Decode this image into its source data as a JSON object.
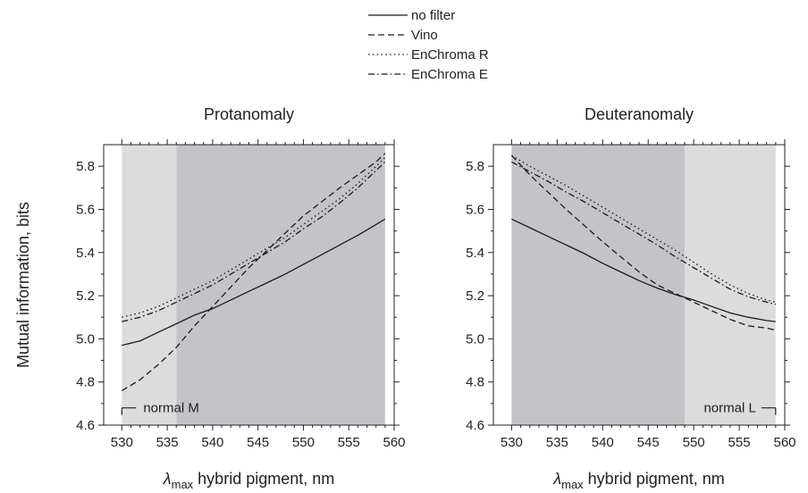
{
  "colors": {
    "line": "#1a1a1a",
    "shade_light": "#dcdcdc",
    "shade_dark": "#c4c4c8",
    "axis": "#222222",
    "text": "#222222"
  },
  "legend": {
    "entries": [
      {
        "label": "no filter",
        "dash": "solid"
      },
      {
        "label": "Vino",
        "dash": "dashed"
      },
      {
        "label": "EnChroma R",
        "dash": "dotted"
      },
      {
        "label": "EnChroma E",
        "dash": "dashdot"
      }
    ]
  },
  "axes": {
    "ylabel": "Mutual information, bits",
    "xlabel_symbol": "λ",
    "xlabel_sub": "max",
    "xlabel_rest": " hybrid pigment, nm"
  },
  "chart_data": [
    {
      "type": "line",
      "title": "Protanomaly",
      "xlim": [
        528,
        560
      ],
      "ylim": [
        4.6,
        5.9
      ],
      "xticks": [
        "530",
        "535",
        "540",
        "545",
        "550",
        "555",
        "560"
      ],
      "yticks": [
        "4.6",
        "4.8",
        "5.0",
        "5.2",
        "5.4",
        "5.6",
        "5.8"
      ],
      "shaded_regions": [
        {
          "x": [
            530,
            536
          ],
          "shade": "light"
        },
        {
          "x": [
            536,
            559
          ],
          "shade": "dark"
        }
      ],
      "annotation": {
        "text": "normal M",
        "x": 530,
        "y": 4.68
      },
      "x": [
        530,
        532,
        534,
        536,
        538,
        540,
        542,
        544,
        546,
        548,
        550,
        552,
        554,
        556,
        558,
        559
      ],
      "series": [
        {
          "name": "no filter",
          "dash": "solid",
          "values": [
            4.97,
            4.99,
            5.03,
            5.07,
            5.11,
            5.14,
            5.18,
            5.22,
            5.26,
            5.3,
            5.345,
            5.39,
            5.435,
            5.48,
            5.53,
            5.555
          ]
        },
        {
          "name": "Vino",
          "dash": "dashed",
          "values": [
            4.76,
            4.81,
            4.88,
            4.96,
            5.06,
            5.15,
            5.24,
            5.33,
            5.41,
            5.49,
            5.57,
            5.635,
            5.7,
            5.76,
            5.82,
            5.86
          ]
        },
        {
          "name": "EnChroma R",
          "dash": "dotted",
          "values": [
            5.1,
            5.12,
            5.15,
            5.19,
            5.23,
            5.27,
            5.32,
            5.37,
            5.42,
            5.47,
            5.53,
            5.59,
            5.65,
            5.72,
            5.8,
            5.84
          ]
        },
        {
          "name": "EnChroma E",
          "dash": "dashdot",
          "values": [
            5.08,
            5.1,
            5.13,
            5.17,
            5.21,
            5.25,
            5.3,
            5.35,
            5.4,
            5.45,
            5.51,
            5.565,
            5.63,
            5.7,
            5.78,
            5.82
          ]
        }
      ]
    },
    {
      "type": "line",
      "title": "Deuteranomaly",
      "xlim": [
        528,
        560
      ],
      "ylim": [
        4.6,
        5.9
      ],
      "xticks": [
        "530",
        "535",
        "540",
        "545",
        "550",
        "555",
        "560"
      ],
      "yticks": [
        "4.6",
        "4.8",
        "5.0",
        "5.2",
        "5.4",
        "5.6",
        "5.8"
      ],
      "shaded_regions": [
        {
          "x": [
            530,
            549
          ],
          "shade": "dark"
        },
        {
          "x": [
            549,
            559
          ],
          "shade": "light"
        }
      ],
      "annotation": {
        "text": "normal L",
        "x": 559,
        "y": 4.68
      },
      "x": [
        530,
        532,
        534,
        536,
        538,
        540,
        542,
        544,
        546,
        548,
        550,
        552,
        554,
        556,
        558,
        559
      ],
      "series": [
        {
          "name": "no filter",
          "dash": "solid",
          "values": [
            5.555,
            5.515,
            5.475,
            5.435,
            5.395,
            5.35,
            5.31,
            5.27,
            5.235,
            5.205,
            5.18,
            5.15,
            5.12,
            5.1,
            5.085,
            5.08
          ]
        },
        {
          "name": "Vino",
          "dash": "dashed",
          "values": [
            5.85,
            5.76,
            5.68,
            5.6,
            5.525,
            5.45,
            5.38,
            5.31,
            5.25,
            5.21,
            5.17,
            5.13,
            5.09,
            5.06,
            5.05,
            5.04
          ]
        },
        {
          "name": "EnChroma R",
          "dash": "dotted",
          "values": [
            5.85,
            5.8,
            5.755,
            5.71,
            5.66,
            5.61,
            5.56,
            5.51,
            5.46,
            5.41,
            5.355,
            5.3,
            5.25,
            5.21,
            5.18,
            5.17
          ]
        },
        {
          "name": "EnChroma E",
          "dash": "dashdot",
          "values": [
            5.82,
            5.775,
            5.73,
            5.68,
            5.635,
            5.585,
            5.535,
            5.485,
            5.435,
            5.38,
            5.33,
            5.28,
            5.23,
            5.195,
            5.17,
            5.16
          ]
        }
      ]
    }
  ]
}
